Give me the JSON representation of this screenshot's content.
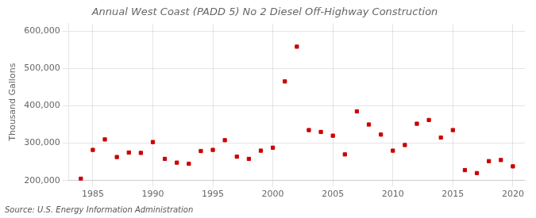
{
  "chart_data": {
    "type": "scatter",
    "title": "Annual West Coast (PADD 5) No 2 Diesel Off-Highway Construction",
    "ylabel": "Thousand Gallons",
    "annotation": "Source: U.S. Energy Information Administration",
    "x": [
      1984,
      1985,
      1986,
      1987,
      1988,
      1989,
      1990,
      1991,
      1992,
      1993,
      1994,
      1995,
      1996,
      1997,
      1998,
      1999,
      2000,
      2001,
      2002,
      2003,
      2004,
      2005,
      2006,
      2007,
      2008,
      2009,
      2010,
      2011,
      2012,
      2013,
      2014,
      2015,
      2016,
      2017,
      2018,
      2019,
      2020
    ],
    "values": [
      205000,
      282000,
      310000,
      263000,
      275000,
      274000,
      303000,
      258000,
      248000,
      245000,
      279000,
      282000,
      308000,
      264000,
      258000,
      280000,
      288000,
      465000,
      558000,
      335000,
      330000,
      320000,
      270000,
      385000,
      350000,
      323000,
      280000,
      295000,
      352000,
      362000,
      315000,
      335000,
      228000,
      220000,
      252000,
      255000,
      238000
    ],
    "color": "#cc0000",
    "marker": "square",
    "xlim": [
      1983,
      2021
    ],
    "xticks": [
      1985,
      1990,
      1995,
      2000,
      2005,
      2010,
      2015,
      2020
    ],
    "ylim": [
      200000,
      620000
    ],
    "yticks": [
      {
        "value": 200000,
        "label": "200,000"
      },
      {
        "value": 300000,
        "label": "300,000"
      },
      {
        "value": 400000,
        "label": "400,000"
      },
      {
        "value": 500000,
        "label": "500,000"
      },
      {
        "value": 600000,
        "label": "600,000"
      }
    ],
    "grid": true
  }
}
